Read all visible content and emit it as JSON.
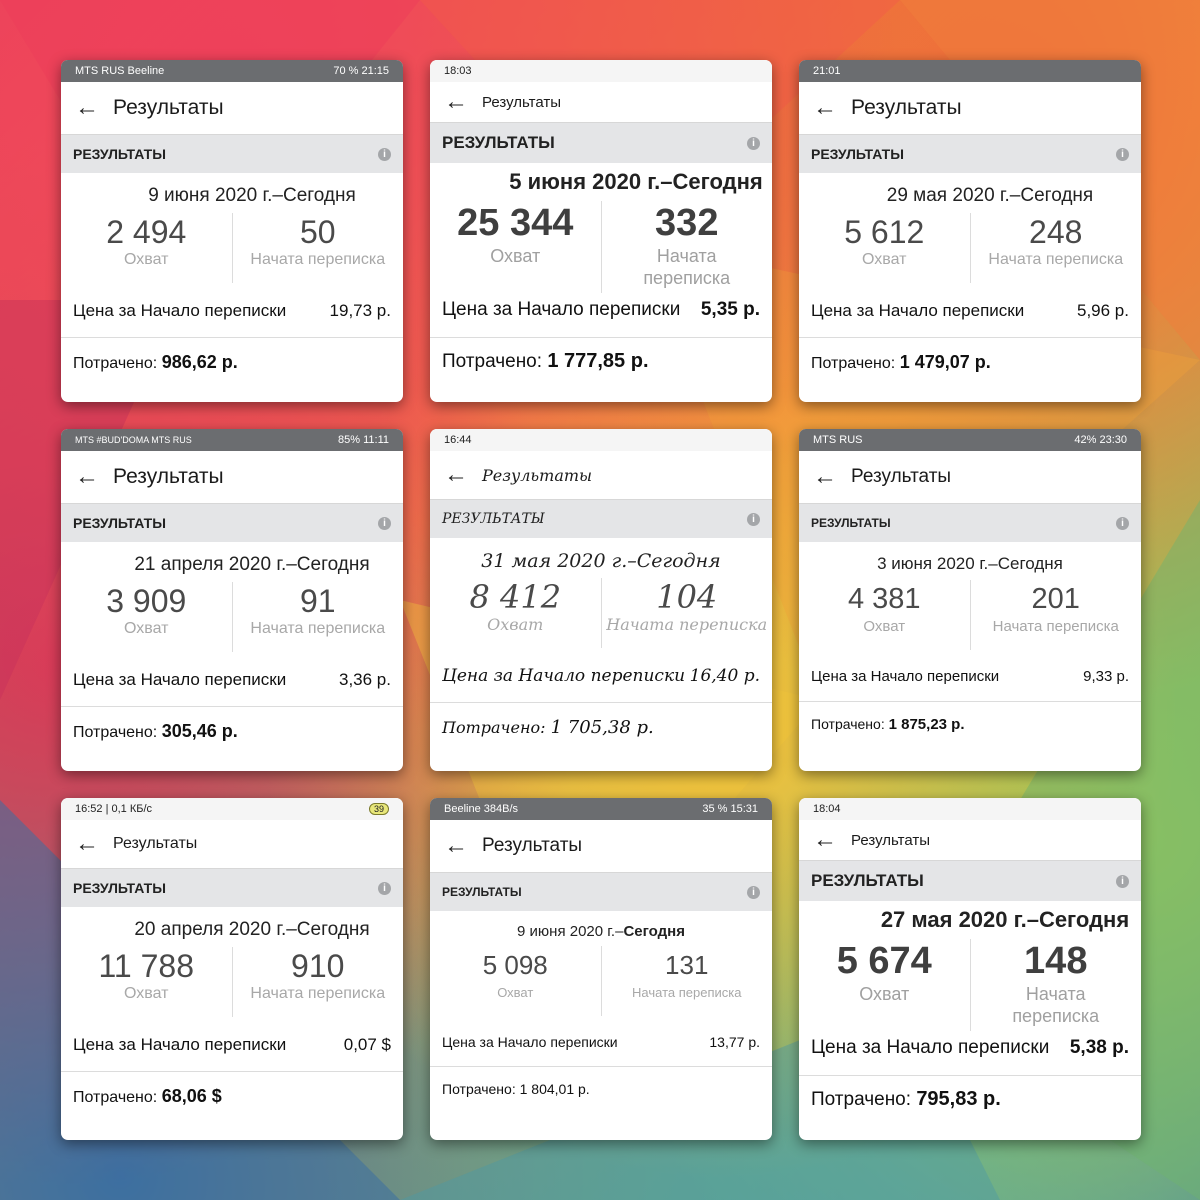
{
  "section_label": "РЕЗУЛЬТАТЫ",
  "info_glyph": "i",
  "back_glyph": "←",
  "cards": [
    {
      "status_left": "MTS RUS Beeline",
      "status_right": "70 % 21:15",
      "title": "Результаты",
      "date_prefix": "9 июня 2020 г.–",
      "date_suffix": "Сегодня",
      "reach": "2 494",
      "reach_label": "Охват",
      "conv": "50",
      "conv_label": "Начата переписка",
      "price_label": "Цена за Начало переписки",
      "price_value": "19,73 р.",
      "spent_label": "Потрачено:",
      "spent_value": "986,62 р."
    },
    {
      "status_left": "18:03",
      "status_right": "",
      "title": "Результаты",
      "date_prefix": "5 июня 2020 г.–",
      "date_suffix": "Сегодня",
      "reach": "25 344",
      "reach_label": "Охват",
      "conv": "332",
      "conv_label": "Начата переписка",
      "price_label": "Цена за Начало переписки",
      "price_value": "5,35 р.",
      "spent_label": "Потрачено:",
      "spent_value": "1 777,85 р."
    },
    {
      "status_left": "21:01",
      "status_right": "",
      "title": "Результаты",
      "date_prefix": "29 мая 2020 г.–",
      "date_suffix": "Сегодня",
      "reach": "5 612",
      "reach_label": "Охват",
      "conv": "248",
      "conv_label": "Начата переписка",
      "price_label": "Цена за Начало переписки",
      "price_value": "5,96 р.",
      "spent_label": "Потрачено:",
      "spent_value": "1 479,07 р."
    },
    {
      "status_left": "MTS #BUD'DOMA MTS RUS",
      "status_right": "85% 11:11",
      "title": "Результаты",
      "date_prefix": "21 апреля 2020 г.–",
      "date_suffix": "Сегодня",
      "reach": "3 909",
      "reach_label": "Охват",
      "conv": "91",
      "conv_label": "Начата переписка",
      "price_label": "Цена за Начало переписки",
      "price_value": "3,36 р.",
      "spent_label": "Потрачено:",
      "spent_value": "305,46 р."
    },
    {
      "status_left": "16:44",
      "status_right": "",
      "title": "Результаты",
      "date_prefix": "31 мая 2020 г.–",
      "date_suffix": "Сегодня",
      "reach": "8 412",
      "reach_label": "Охват",
      "conv": "104",
      "conv_label": "Начата переписка",
      "price_label": "Цена за Начало переписки",
      "price_value": "16,40 р.",
      "spent_label": "Потрачено:",
      "spent_value": "1 705,38 р."
    },
    {
      "status_left": "MTS RUS",
      "status_right": "42% 23:30",
      "title": "Результаты",
      "date_prefix": "3 июня 2020 г.–",
      "date_suffix": "Сегодня",
      "reach": "4 381",
      "reach_label": "Охват",
      "conv": "201",
      "conv_label": "Начата переписка",
      "price_label": "Цена за Начало переписки",
      "price_value": "9,33 р.",
      "spent_label": "Потрачено:",
      "spent_value": "1 875,23 р."
    },
    {
      "status_left": "16:52 | 0,1 КБ/с",
      "status_right": "39",
      "title": "Результаты",
      "date_prefix": "20 апреля 2020 г.–",
      "date_suffix": "Сегодня",
      "reach": "11 788",
      "reach_label": "Охват",
      "conv": "910",
      "conv_label": "Начата переписка",
      "price_label": "Цена за Начало переписки",
      "price_value": "0,07 $",
      "spent_label": "Потрачено:",
      "spent_value": "68,06 $"
    },
    {
      "status_left": "Beeline 384B/s",
      "status_right": "35 % 15:31",
      "title": "Результаты",
      "date_prefix": "9 июня 2020 г.–",
      "date_suffix": "Сегодня",
      "reach": "5 098",
      "reach_label": "Охват",
      "conv": "131",
      "conv_label": "Начата переписка",
      "price_label": "Цена за Начало переписки",
      "price_value": "13,77 р.",
      "spent_label": "Потрачено:",
      "spent_value": "1 804,01 р."
    },
    {
      "status_left": "18:04",
      "status_right": "",
      "title": "Результаты",
      "date_prefix": "27 мая 2020 г.–",
      "date_suffix": "Сегодня",
      "reach": "5 674",
      "reach_label": "Охват",
      "conv": "148",
      "conv_label": "Начата переписка",
      "price_label": "Цена за Начало переписки",
      "price_value": "5,38 р.",
      "spent_label": "Потрачено:",
      "spent_value": "795,83 р."
    }
  ]
}
